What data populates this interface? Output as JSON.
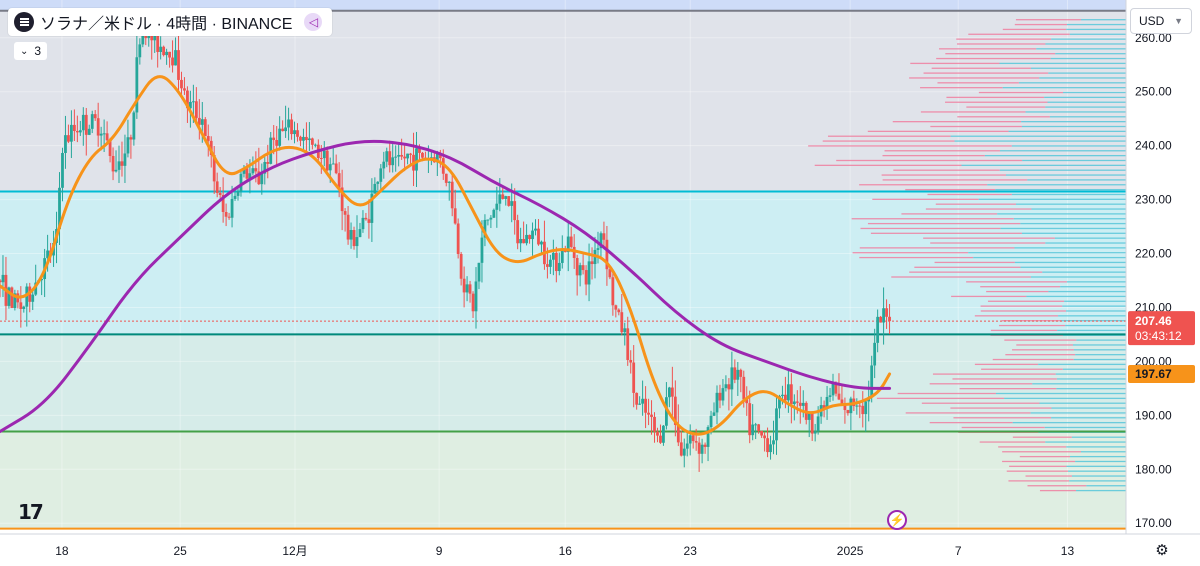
{
  "header": {
    "title": "ソラナ／米ドル · 4時間 · BINANCE",
    "indicator_count": "3",
    "currency": "USD"
  },
  "colors": {
    "up": "#26a69a",
    "down": "#ef5350",
    "ma_short": "#f7931a",
    "ma_long": "#9c27b0",
    "zone_top": "#e0e3ea",
    "zone_mid": "#cdeef3",
    "zone_low": "#dfeee2",
    "profile_up": "#5ec8da",
    "profile_down": "#ef7fa0"
  },
  "icons": [
    "solana-logo-icon",
    "share-icon",
    "chevron-down-icon",
    "tradingview-logo-icon",
    "flash-icon",
    "settings-icon"
  ],
  "chart_data": {
    "type": "candlestick",
    "title": "ソラナ／米ドル · 4時間 · BINANCE",
    "ylim": [
      168,
      267
    ],
    "y_ticks": [
      "170.00",
      "180.00",
      "190.00",
      "200.00",
      "210.00",
      "220.00",
      "230.00",
      "240.00",
      "250.00",
      "260.00"
    ],
    "x_ticks": [
      {
        "label": "18",
        "t": 0.055
      },
      {
        "label": "25",
        "t": 0.16
      },
      {
        "label": "12月",
        "t": 0.262
      },
      {
        "label": "9",
        "t": 0.39
      },
      {
        "label": "16",
        "t": 0.502
      },
      {
        "label": "23",
        "t": 0.613
      },
      {
        "label": "2025",
        "t": 0.755
      },
      {
        "label": "7",
        "t": 0.851
      },
      {
        "label": "13",
        "t": 0.948
      }
    ],
    "last_price": {
      "value": 207.46,
      "label": "207.46",
      "countdown": "03:43:12"
    },
    "ma_short_last": {
      "value": 197.67,
      "label": "197.67"
    },
    "levels": [
      {
        "name": "resistance-top",
        "value": 265.0,
        "color": "#787b86"
      },
      {
        "name": "resistance-1",
        "value": 231.5,
        "color": "#00bcd4"
      },
      {
        "name": "support-1",
        "value": 205.0,
        "color": "#00897b"
      },
      {
        "name": "support-2",
        "value": 187.0,
        "color": "#43a047"
      },
      {
        "name": "floor",
        "value": 169.0,
        "color": "#f7931a"
      }
    ],
    "close_anchors": [
      [
        0.0,
        215
      ],
      [
        0.01,
        211
      ],
      [
        0.02,
        210
      ],
      [
        0.03,
        214
      ],
      [
        0.04,
        218
      ],
      [
        0.05,
        222
      ],
      [
        0.055,
        240
      ],
      [
        0.07,
        244
      ],
      [
        0.09,
        244
      ],
      [
        0.1,
        236
      ],
      [
        0.115,
        240
      ],
      [
        0.125,
        262
      ],
      [
        0.14,
        259
      ],
      [
        0.155,
        257
      ],
      [
        0.165,
        248
      ],
      [
        0.18,
        245
      ],
      [
        0.19,
        234
      ],
      [
        0.2,
        226
      ],
      [
        0.215,
        235
      ],
      [
        0.23,
        234
      ],
      [
        0.245,
        242
      ],
      [
        0.26,
        243
      ],
      [
        0.275,
        240
      ],
      [
        0.29,
        238
      ],
      [
        0.3,
        234
      ],
      [
        0.31,
        222
      ],
      [
        0.325,
        226
      ],
      [
        0.34,
        238
      ],
      [
        0.35,
        236
      ],
      [
        0.36,
        238
      ],
      [
        0.375,
        238
      ],
      [
        0.39,
        238
      ],
      [
        0.4,
        232
      ],
      [
        0.41,
        216
      ],
      [
        0.42,
        210
      ],
      [
        0.43,
        225
      ],
      [
        0.45,
        232
      ],
      [
        0.46,
        222
      ],
      [
        0.475,
        224
      ],
      [
        0.49,
        218
      ],
      [
        0.505,
        222
      ],
      [
        0.52,
        215
      ],
      [
        0.535,
        225
      ],
      [
        0.545,
        210
      ],
      [
        0.555,
        205
      ],
      [
        0.565,
        192
      ],
      [
        0.575,
        190
      ],
      [
        0.585,
        185
      ],
      [
        0.595,
        196
      ],
      [
        0.605,
        183
      ],
      [
        0.615,
        186
      ],
      [
        0.625,
        184
      ],
      [
        0.64,
        195
      ],
      [
        0.655,
        198
      ],
      [
        0.665,
        188
      ],
      [
        0.675,
        186
      ],
      [
        0.685,
        185
      ],
      [
        0.695,
        195
      ],
      [
        0.71,
        193
      ],
      [
        0.72,
        188
      ],
      [
        0.73,
        191
      ],
      [
        0.74,
        195
      ],
      [
        0.75,
        190
      ],
      [
        0.76,
        193
      ],
      [
        0.77,
        192
      ],
      [
        0.775,
        200
      ],
      [
        0.78,
        207
      ],
      [
        0.785,
        208
      ],
      [
        0.79,
        207.46
      ]
    ],
    "series": [
      {
        "name": "MA (short)",
        "type": "line",
        "color": "#f7931a",
        "points": [
          [
            0.0,
            214
          ],
          [
            0.02,
            211
          ],
          [
            0.04,
            216
          ],
          [
            0.06,
            230
          ],
          [
            0.08,
            238
          ],
          [
            0.1,
            241
          ],
          [
            0.12,
            248
          ],
          [
            0.14,
            254
          ],
          [
            0.16,
            250
          ],
          [
            0.18,
            242
          ],
          [
            0.2,
            234
          ],
          [
            0.22,
            236
          ],
          [
            0.24,
            239
          ],
          [
            0.26,
            240
          ],
          [
            0.28,
            238
          ],
          [
            0.3,
            232
          ],
          [
            0.32,
            228
          ],
          [
            0.34,
            232
          ],
          [
            0.36,
            236
          ],
          [
            0.38,
            238
          ],
          [
            0.4,
            236
          ],
          [
            0.42,
            228
          ],
          [
            0.44,
            220
          ],
          [
            0.46,
            218
          ],
          [
            0.48,
            220
          ],
          [
            0.5,
            221
          ],
          [
            0.52,
            220
          ],
          [
            0.54,
            219
          ],
          [
            0.56,
            210
          ],
          [
            0.58,
            196
          ],
          [
            0.6,
            188
          ],
          [
            0.62,
            186
          ],
          [
            0.64,
            188
          ],
          [
            0.66,
            193
          ],
          [
            0.68,
            195
          ],
          [
            0.7,
            192
          ],
          [
            0.72,
            190
          ],
          [
            0.74,
            192
          ],
          [
            0.76,
            192
          ],
          [
            0.78,
            194
          ],
          [
            0.79,
            197.67
          ]
        ]
      },
      {
        "name": "MA (long)",
        "type": "line",
        "color": "#9c27b0",
        "points": [
          [
            0.0,
            187
          ],
          [
            0.04,
            192
          ],
          [
            0.08,
            203
          ],
          [
            0.12,
            215
          ],
          [
            0.16,
            223
          ],
          [
            0.2,
            231
          ],
          [
            0.24,
            236
          ],
          [
            0.28,
            239
          ],
          [
            0.32,
            241
          ],
          [
            0.36,
            240.5
          ],
          [
            0.4,
            238
          ],
          [
            0.44,
            233
          ],
          [
            0.48,
            229
          ],
          [
            0.52,
            224
          ],
          [
            0.56,
            217
          ],
          [
            0.6,
            209
          ],
          [
            0.64,
            203
          ],
          [
            0.68,
            200
          ],
          [
            0.72,
            197
          ],
          [
            0.76,
            195
          ],
          [
            0.79,
            195
          ]
        ]
      }
    ],
    "volume_profile_note": ""
  }
}
